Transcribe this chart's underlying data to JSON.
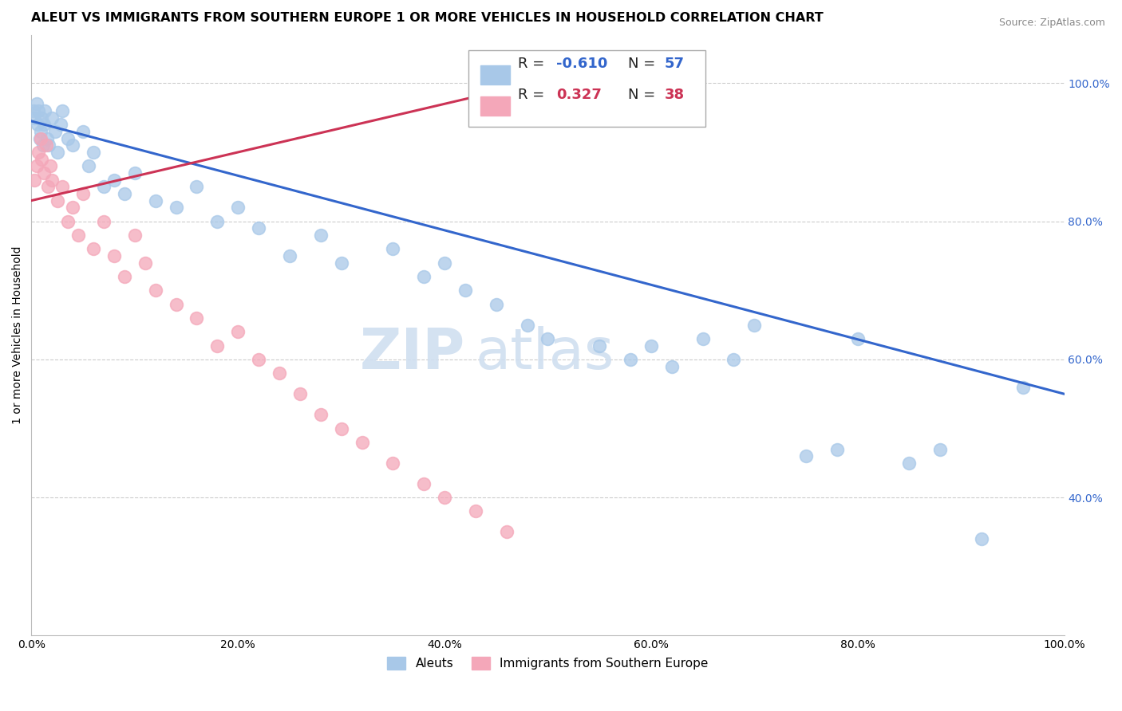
{
  "title": "ALEUT VS IMMIGRANTS FROM SOUTHERN EUROPE 1 OR MORE VEHICLES IN HOUSEHOLD CORRELATION CHART",
  "source": "Source: ZipAtlas.com",
  "ylabel": "1 or more Vehicles in Household",
  "xlim": [
    0.0,
    100.0
  ],
  "ylim": [
    20.0,
    107.0
  ],
  "xticks": [
    0.0,
    20.0,
    40.0,
    60.0,
    80.0,
    100.0
  ],
  "yticks": [
    40.0,
    60.0,
    80.0,
    100.0
  ],
  "xtick_labels": [
    "0.0%",
    "20.0%",
    "40.0%",
    "60.0%",
    "80.0%",
    "100.0%"
  ],
  "ytick_labels_left": [
    "40.0%",
    "60.0%",
    "80.0%",
    "100.0%"
  ],
  "ytick_labels_right": [
    "40.0%",
    "60.0%",
    "80.0%",
    "100.0%"
  ],
  "aleut_color": "#A8C8E8",
  "seur_color": "#F4A7B9",
  "aleut_line_color": "#3366CC",
  "seur_line_color": "#CC3355",
  "background_color": "#FFFFFF",
  "grid_color": "#CCCCCC",
  "aleut_x": [
    0.2,
    0.3,
    0.5,
    0.6,
    0.7,
    0.8,
    0.9,
    1.0,
    1.1,
    1.2,
    1.3,
    1.5,
    1.7,
    2.0,
    2.3,
    2.5,
    2.8,
    3.0,
    3.5,
    4.0,
    5.0,
    5.5,
    6.0,
    7.0,
    8.0,
    9.0,
    10.0,
    12.0,
    14.0,
    16.0,
    18.0,
    20.0,
    22.0,
    25.0,
    28.0,
    30.0,
    35.0,
    38.0,
    40.0,
    42.0,
    45.0,
    48.0,
    50.0,
    55.0,
    58.0,
    60.0,
    62.0,
    65.0,
    68.0,
    70.0,
    75.0,
    78.0,
    80.0,
    85.0,
    88.0,
    92.0,
    96.0
  ],
  "aleut_y": [
    96.0,
    95.0,
    97.0,
    94.0,
    96.0,
    92.0,
    93.0,
    95.0,
    91.0,
    94.0,
    96.0,
    92.0,
    91.0,
    95.0,
    93.0,
    90.0,
    94.0,
    96.0,
    92.0,
    91.0,
    93.0,
    88.0,
    90.0,
    85.0,
    86.0,
    84.0,
    87.0,
    83.0,
    82.0,
    85.0,
    80.0,
    82.0,
    79.0,
    75.0,
    78.0,
    74.0,
    76.0,
    72.0,
    74.0,
    70.0,
    68.0,
    65.0,
    63.0,
    62.0,
    60.0,
    62.0,
    59.0,
    63.0,
    60.0,
    65.0,
    46.0,
    47.0,
    63.0,
    45.0,
    47.0,
    34.0,
    56.0
  ],
  "seur_x": [
    0.3,
    0.5,
    0.7,
    0.9,
    1.0,
    1.2,
    1.4,
    1.6,
    1.8,
    2.0,
    2.5,
    3.0,
    3.5,
    4.0,
    4.5,
    5.0,
    6.0,
    7.0,
    8.0,
    9.0,
    10.0,
    11.0,
    12.0,
    14.0,
    16.0,
    18.0,
    20.0,
    22.0,
    24.0,
    26.0,
    28.0,
    30.0,
    32.0,
    35.0,
    38.0,
    40.0,
    43.0,
    46.0
  ],
  "seur_y": [
    86.0,
    88.0,
    90.0,
    92.0,
    89.0,
    87.0,
    91.0,
    85.0,
    88.0,
    86.0,
    83.0,
    85.0,
    80.0,
    82.0,
    78.0,
    84.0,
    76.0,
    80.0,
    75.0,
    72.0,
    78.0,
    74.0,
    70.0,
    68.0,
    66.0,
    62.0,
    64.0,
    60.0,
    58.0,
    55.0,
    52.0,
    50.0,
    48.0,
    45.0,
    42.0,
    40.0,
    38.0,
    35.0
  ],
  "aleut_line_x0": 0.0,
  "aleut_line_x1": 100.0,
  "aleut_line_y0": 94.5,
  "aleut_line_y1": 55.0,
  "seur_line_x0": 0.0,
  "seur_line_x1": 50.0,
  "seur_line_y0": 83.0,
  "seur_line_y1": 100.5,
  "watermark_text": "ZIP­atlas",
  "title_fontsize": 11.5,
  "axis_label_fontsize": 10,
  "tick_fontsize": 10,
  "right_tick_color": "#3366CC"
}
